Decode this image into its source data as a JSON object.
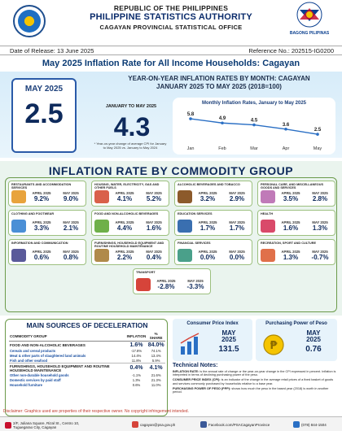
{
  "header": {
    "republic": "REPUBLIC OF THE PHILIPPINES",
    "agency": "PHILIPPINE STATISTICS AUTHORITY",
    "office": "CAGAYAN PROVINCIAL STATISTICAL OFFICE",
    "right_logo_caption": "BAGONG PILIPINAS"
  },
  "meta": {
    "release": "Date of Release: 13 June 2025",
    "reference": "Reference No.: 202515-IG0200"
  },
  "title": "May 2025 Inflation Rate for All Income Households: Cagayan",
  "hero": {
    "title_line1": "YEAR-ON-YEAR INFLATION RATES BY MONTH: CAGAYAN",
    "title_line2": "JANUARY 2025 TO MAY 2025 (2018=100)",
    "may_label": "MAY 2025",
    "may_value": "2.5",
    "jan_label": "JANUARY TO MAY 2025",
    "jan_value": "4.3",
    "jan_note": "* Year-on-year change of average CPI for January to May 2025 vs. January to May 2024"
  },
  "chart_data": {
    "type": "line",
    "title": "Monthly Inflation Rates, January to May 2025",
    "categories": [
      "Jan",
      "Feb",
      "Mar",
      "Apr",
      "May"
    ],
    "values": [
      5.8,
      4.9,
      4.5,
      3.6,
      2.5
    ],
    "value_labels": [
      "5.8",
      "4.9",
      "4.5",
      "3.6",
      "2.5"
    ],
    "color": "#2a6fc4"
  },
  "commodity": {
    "title": "INFLATION RATE BY COMMODITY GROUP",
    "items": [
      {
        "name": "RESTAURANTS AND ACCOMMODATION SERVICES",
        "apr_label": "APRIL 2025",
        "apr": "9.2%",
        "may_label": "MAY 2025",
        "may": "9.0%",
        "color": "#e8a33c"
      },
      {
        "name": "HOUSING, WATER, ELECTRICITY, GAS AND OTHER FUELS",
        "apr_label": "APRIL 2025",
        "apr": "4.1%",
        "may_label": "MAY 2025",
        "may": "5.2%",
        "color": "#d9604a"
      },
      {
        "name": "ALCOHOLIC BEVERAGES AND TOBACCO",
        "apr_label": "APRIL 2025",
        "apr": "3.2%",
        "may_label": "MAY 2025",
        "may": "2.9%",
        "color": "#8c5a2b"
      },
      {
        "name": "PERSONAL CARE, AND MISCELLANEOUS GOODS AND SERVICES",
        "apr_label": "APRIL 2025",
        "apr": "3.5%",
        "may_label": "MAY 2025",
        "may": "2.8%",
        "color": "#c07ab8"
      },
      {
        "name": "CLOTHING AND FOOTWEAR",
        "apr_label": "APRIL 2025",
        "apr": "3.3%",
        "may_label": "MAY 2025",
        "may": "2.1%",
        "color": "#4a8fd6"
      },
      {
        "name": "FOOD AND NON-ALCOHOLIC BEVERAGES",
        "apr_label": "APRIL 2025",
        "apr": "4.4%",
        "may_label": "MAY 2025",
        "may": "1.6%",
        "color": "#6fb04a"
      },
      {
        "name": "EDUCATION SERVICES",
        "apr_label": "APRIL 2025",
        "apr": "1.7%",
        "may_label": "MAY 2025",
        "may": "1.7%",
        "color": "#3a6fb0"
      },
      {
        "name": "HEALTH",
        "apr_label": "APRIL 2025",
        "apr": "1.6%",
        "may_label": "MAY 2025",
        "may": "1.3%",
        "color": "#d94a6a"
      },
      {
        "name": "INFORMATION AND COMMUNICATION",
        "apr_label": "APRIL 2025",
        "apr": "0.6%",
        "may_label": "MAY 2025",
        "may": "0.8%",
        "color": "#5a5a9a"
      },
      {
        "name": "FURNISHINGS, HOUSEHOLD EQUIPMENT AND ROUTINE HOUSEHOLD MAINTENANCE",
        "apr_label": "APRIL 2025",
        "apr": "2.2%",
        "may_label": "MAY 2025",
        "may": "0.4%",
        "color": "#b08a4a"
      },
      {
        "name": "FINANCIAL SERVICES",
        "apr_label": "APRIL 2025",
        "apr": "0.0%",
        "may_label": "MAY 2025",
        "may": "0.0%",
        "color": "#4aa08a"
      },
      {
        "name": "RECREATION, SPORT AND CULTURE",
        "apr_label": "APRIL 2025",
        "apr": "1.3%",
        "may_label": "MAY 2025",
        "may": "-0.7%",
        "color": "#e0704a"
      },
      {
        "name": "TRANSPORT",
        "apr_label": "APRIL 2025",
        "apr": "-2.8%",
        "may_label": "MAY 2025",
        "may": "-3.3%",
        "color": "#d6443a"
      }
    ]
  },
  "deceleration": {
    "title": "MAIN SOURCES OF DECELERATION",
    "headers": [
      "COMMODITY GROUP",
      "INFLATION",
      "% SHARE"
    ],
    "rows": [
      {
        "kind": "main",
        "name": "FOOD AND NON-ALCOHOLIC BEVERAGES",
        "inflation": "1.6%",
        "share": "84.0%"
      },
      {
        "kind": "sub",
        "name": "Cereals and cereal products",
        "inflation": "-17.8%",
        "share": "74.1%"
      },
      {
        "kind": "sub",
        "name": "Meat & other parts of slaughtered land animals",
        "inflation": "14.4%",
        "share": "13.4%"
      },
      {
        "kind": "sub",
        "name": "Fish and other seafood",
        "inflation": "11.8%",
        "share": "5.9%"
      },
      {
        "kind": "main",
        "name": "FURNISHINGS, HOUSEHOLD EQUIPMENT AND ROUTINE HOUSEHOLD MAINTENANCE",
        "inflation": "0.4%",
        "share": "4.1%"
      },
      {
        "kind": "sub",
        "name": "Other non-durable household goods",
        "inflation": "-1.1%",
        "share": "21.6%"
      },
      {
        "kind": "sub",
        "name": "Domestic services by paid staff",
        "inflation": "1.3%",
        "share": "21.3%"
      },
      {
        "kind": "sub",
        "name": "Household furniture",
        "inflation": "0.6%",
        "share": "11.0%"
      }
    ]
  },
  "cpi": {
    "title": "Consumer Price Index",
    "month": "MAY",
    "year": "2025",
    "value": "131.5"
  },
  "ppp": {
    "title": "Purchasing Power of Peso",
    "month": "MAY",
    "year": "2025",
    "value": "0.76"
  },
  "technical": {
    "title": "Technical Notes:",
    "notes": [
      {
        "term": "INFLATION RATE:",
        "text": " is the annual rate of change or the year-on-year change in the CPI expressed in percent. Inflation is interpreted in terms of declining purchasing power of the peso."
      },
      {
        "term": "CONSUMER PRICE INDEX (CPI):",
        "text": " is an indicator of the change in the average retail prices of a fixed basket of goods and services commonly purchased by households relative to a base year."
      },
      {
        "term": "PURCHASING POWER OF PESO (PPP):",
        "text": " shows how much the peso in the based year (2018) is worth in another period."
      }
    ]
  },
  "disclaimer": "Disclaimer: Graphics used are properties of their respective owner. No copyright infringement intended.",
  "footer": {
    "address_line1": "2/F, Juliana Square, Rizal St., Centro 10,",
    "address_line2": "Tuguegarao City, Cagayan",
    "email": "cagayan@psa.gov.ph",
    "facebook": "Facebook.com/PSACagayanProvince",
    "phone": "(078) 844-1504"
  }
}
